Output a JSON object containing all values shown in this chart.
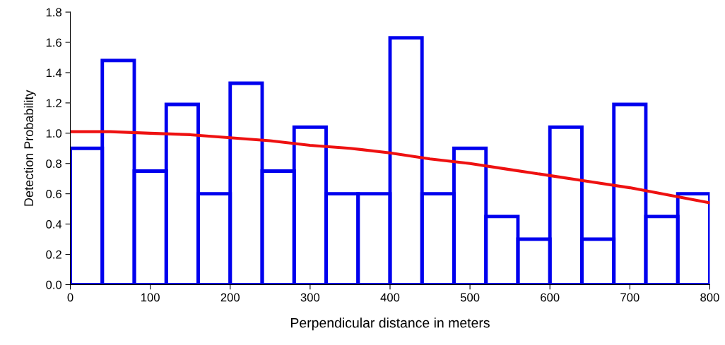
{
  "chart_data": {
    "type": "histogram",
    "xlabel": "Perpendicular distance in meters",
    "ylabel": "Detection Probability",
    "bins": [
      0,
      40,
      80,
      120,
      160,
      200,
      240,
      280,
      320,
      360,
      400,
      440,
      480,
      520,
      560,
      600,
      640,
      680,
      720,
      760,
      800
    ],
    "values": [
      0.9,
      1.48,
      0.75,
      1.19,
      0.6,
      1.33,
      0.75,
      1.04,
      0.6,
      0.6,
      1.63,
      0.6,
      0.9,
      0.45,
      0.3,
      1.04,
      0.3,
      1.19,
      0.45,
      0.6
    ],
    "color": "#0000ee",
    "series": [
      {
        "type": "line",
        "color": "#ee1111",
        "x": [
          0,
          50,
          100,
          150,
          200,
          250,
          300,
          350,
          400,
          450,
          500,
          550,
          600,
          650,
          700,
          750,
          800
        ],
        "values": [
          1.01,
          1.01,
          1.0,
          0.99,
          0.97,
          0.95,
          0.92,
          0.9,
          0.87,
          0.83,
          0.8,
          0.76,
          0.72,
          0.68,
          0.64,
          0.59,
          0.54
        ]
      }
    ],
    "xlim": [
      0,
      800
    ],
    "xticks": [
      0,
      100,
      200,
      300,
      400,
      500,
      600,
      700,
      800
    ],
    "ylim": [
      0,
      1.8
    ],
    "yticks": [
      {
        "value": 0,
        "label": "0.0"
      },
      {
        "value": 0.2,
        "label": "0.2"
      },
      {
        "value": 0.4,
        "label": "0.4"
      },
      {
        "value": 0.6,
        "label": "0.6"
      },
      {
        "value": 0.8,
        "label": "0.8"
      },
      {
        "value": 1.0,
        "label": "1.0"
      },
      {
        "value": 1.2,
        "label": "1.2"
      },
      {
        "value": 1.4,
        "label": "1.4"
      },
      {
        "value": 1.6,
        "label": "1.6"
      },
      {
        "value": 1.8,
        "label": "1.8"
      }
    ]
  }
}
